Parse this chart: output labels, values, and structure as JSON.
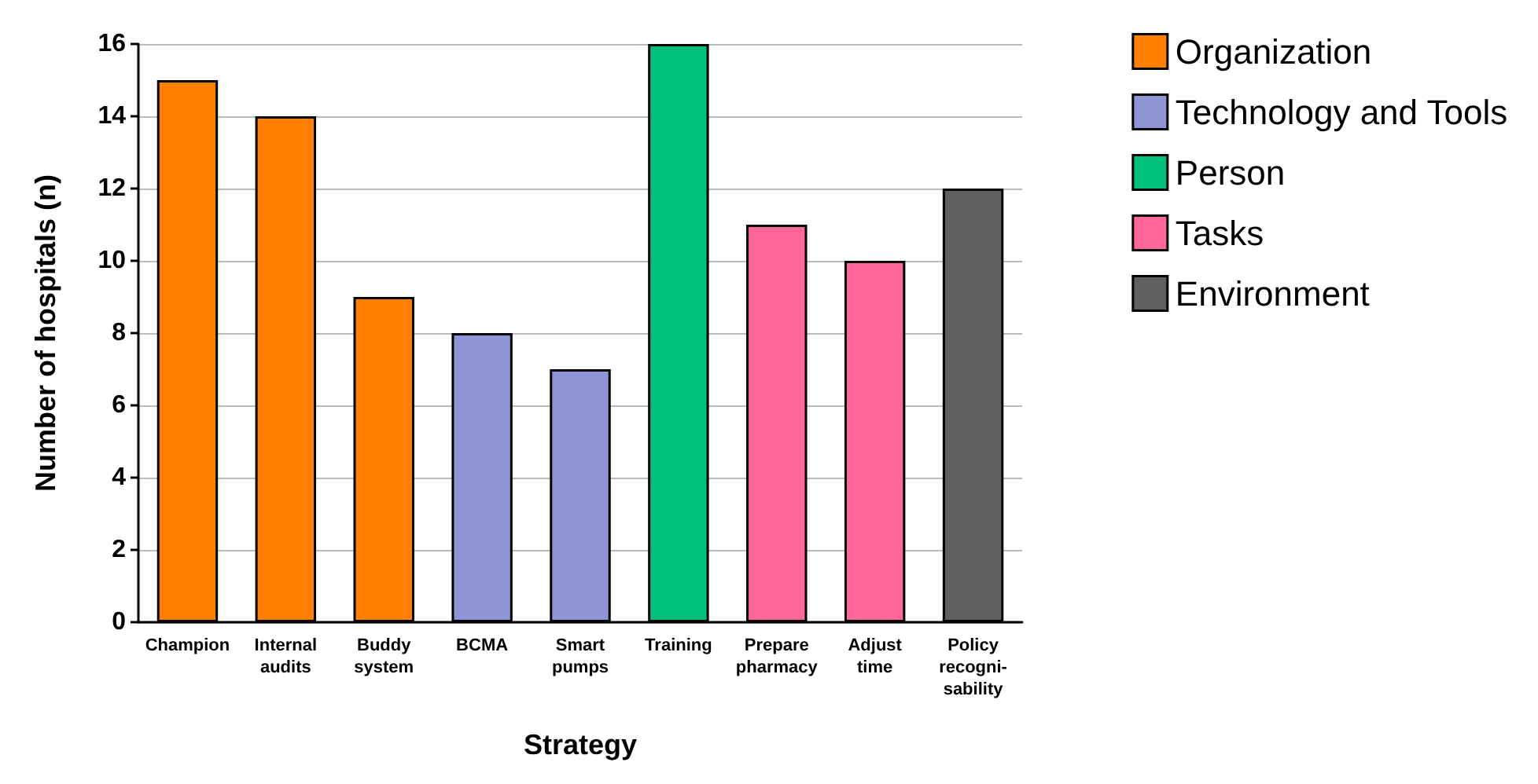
{
  "chart_data": {
    "type": "bar",
    "xlabel": "Strategy",
    "ylabel": "Number of hospitals (n)",
    "categories": [
      "Champion",
      "Internal\naudits",
      "Buddy\nsystem",
      "BCMA",
      "Smart\npumps",
      "Training",
      "Prepare\npharmacy",
      "Adjust\ntime",
      "Policy\nrecogni-\nsability"
    ],
    "series": [
      {
        "name": "Organization",
        "color": "#ff8000",
        "values": [
          15,
          14,
          9,
          null,
          null,
          null,
          null,
          null,
          null
        ]
      },
      {
        "name": "Technology and Tools",
        "color": "#8e94d4",
        "values": [
          null,
          null,
          null,
          8,
          7,
          null,
          null,
          null,
          null
        ]
      },
      {
        "name": "Person",
        "color": "#00c07a",
        "values": [
          null,
          null,
          null,
          null,
          null,
          16,
          null,
          null,
          null
        ]
      },
      {
        "name": "Tasks",
        "color": "#ff6699",
        "values": [
          null,
          null,
          null,
          null,
          null,
          null,
          11,
          10,
          null
        ]
      },
      {
        "name": "Environment",
        "color": "#606060",
        "values": [
          null,
          null,
          null,
          null,
          null,
          null,
          null,
          null,
          12
        ]
      }
    ],
    "ylim": [
      0,
      16
    ],
    "yticks": [
      0,
      2,
      4,
      6,
      8,
      10,
      12,
      14,
      16
    ],
    "grid": "y",
    "legend": "top right"
  }
}
